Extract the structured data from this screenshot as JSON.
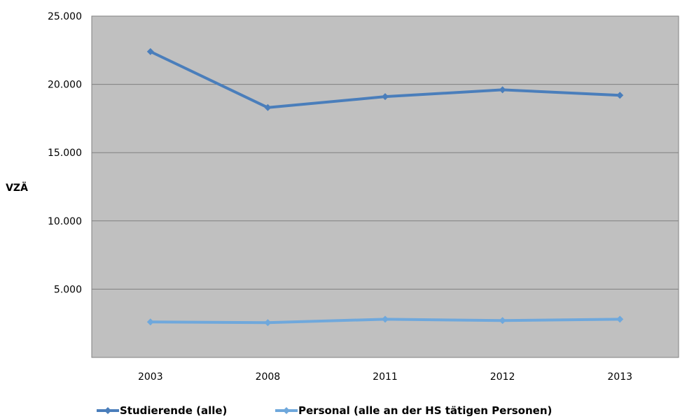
{
  "chart_data": {
    "type": "line",
    "title": "",
    "xlabel": "",
    "ylabel": "VZÄ",
    "categories": [
      "2003",
      "2008",
      "2011",
      "2012",
      "2013"
    ],
    "ylim": [
      0,
      25000
    ],
    "y_ticks": [
      5000,
      10000,
      15000,
      20000,
      25000
    ],
    "y_tick_labels": [
      "5.000",
      "10.000",
      "15.000",
      "20.000",
      "25.000"
    ],
    "grid": "horizontal",
    "plot_background": "#c0c0c0",
    "legend_position": "bottom",
    "series": [
      {
        "name": "Studierende (alle)",
        "color": "#4a7ebb",
        "values": [
          22400,
          18300,
          19100,
          19600,
          19200
        ]
      },
      {
        "name": "Personal (alle an der HS tätigen Personen)",
        "color": "#6fa8dc",
        "values": [
          2600,
          2550,
          2800,
          2700,
          2800
        ]
      }
    ]
  }
}
